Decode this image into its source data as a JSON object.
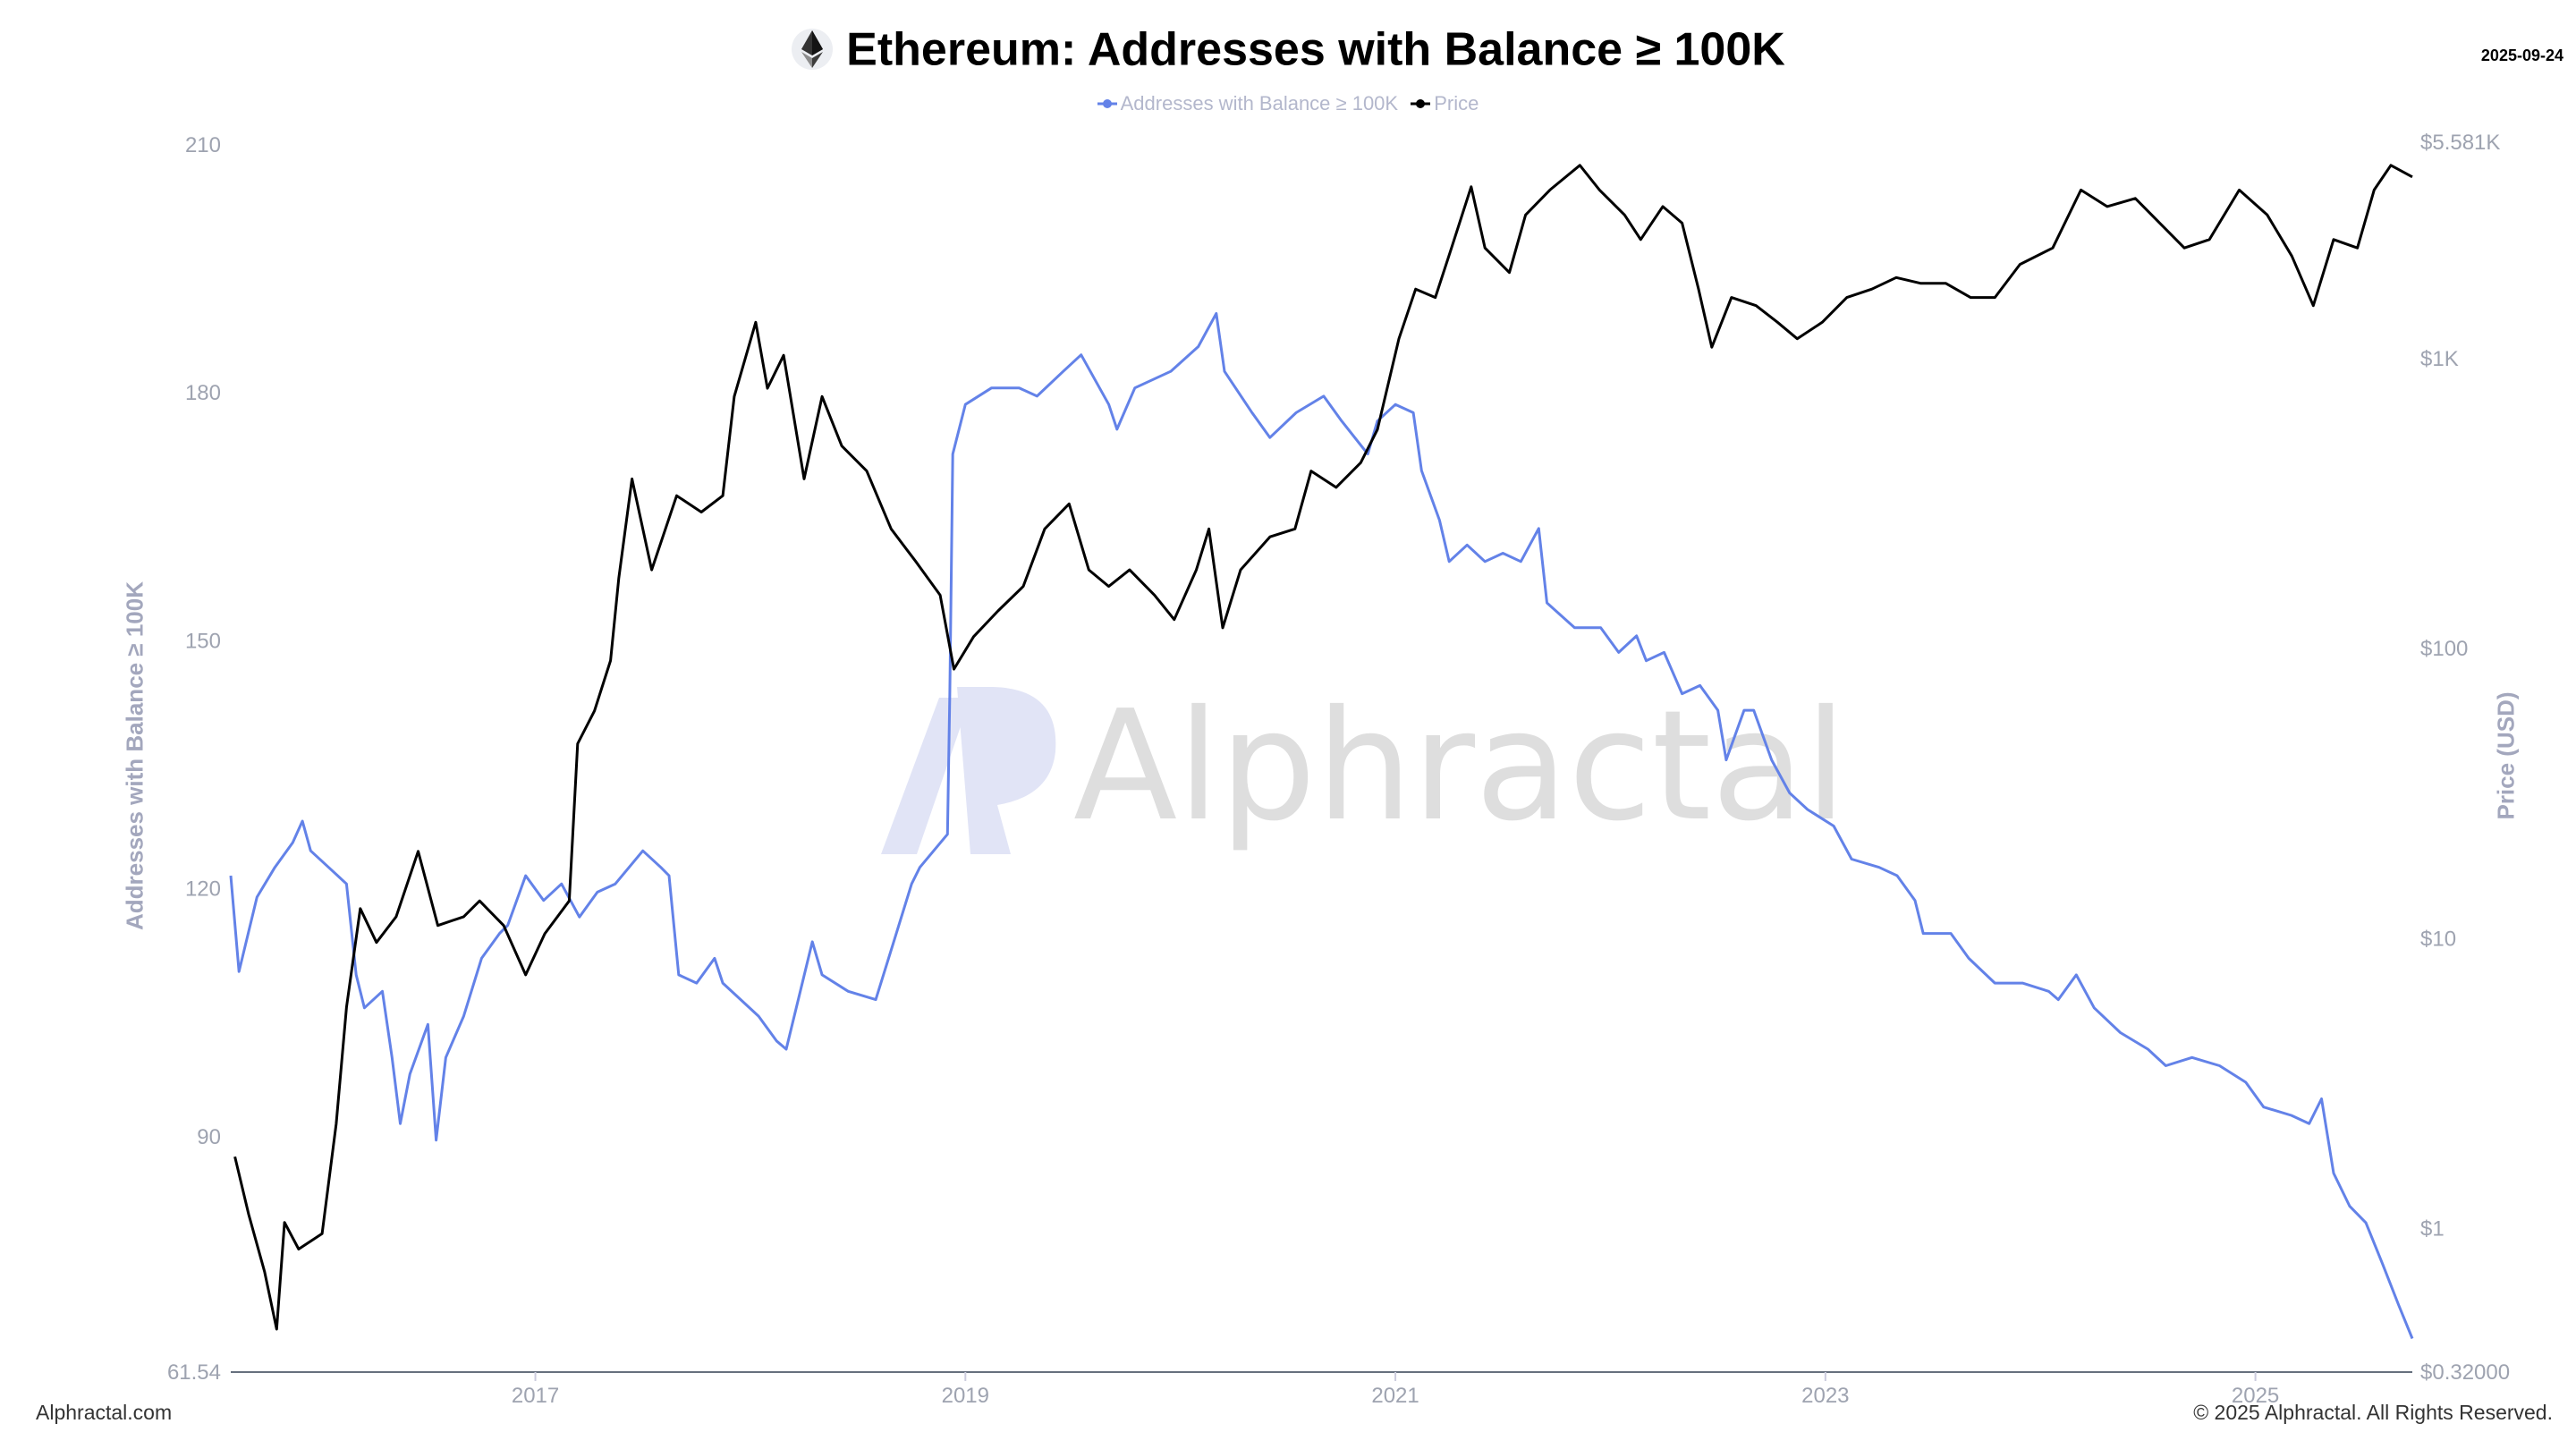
{
  "header": {
    "title": "Ethereum: Addresses with Balance ≥ 100K",
    "date": "2025-09-24",
    "icon": "ethereum-icon"
  },
  "footer": {
    "left": "Alphractal.com",
    "right": "© 2025 Alphractal. All Rights Reserved."
  },
  "watermark": "Alphractal",
  "colors": {
    "addresses": "#6382e8",
    "price": "#000000"
  },
  "chart_data": {
    "type": "line",
    "title": "Ethereum: Addresses with Balance ≥ 100K",
    "legend": [
      "Addresses with Balance ≥ 100K",
      "Price"
    ],
    "legend_position": "top",
    "grid": false,
    "x_axis": {
      "range": [
        "2015-08-01",
        "2025-09-24"
      ],
      "ticks": [
        "2017",
        "2019",
        "2021",
        "2023",
        "2025"
      ]
    },
    "y_left": {
      "label": "Addresses with Balance ≥ 100K",
      "range": [
        61.54,
        210
      ],
      "ticks": [
        {
          "v": 61.54,
          "label": "61.54"
        },
        {
          "v": 90,
          "label": "90"
        },
        {
          "v": 120,
          "label": "120"
        },
        {
          "v": 150,
          "label": "150"
        },
        {
          "v": 180,
          "label": "180"
        },
        {
          "v": 210,
          "label": "210"
        }
      ]
    },
    "y_right": {
      "label": "Price (USD)",
      "scale": "log",
      "range": [
        0.32,
        5581
      ],
      "ticks": [
        {
          "v": 0.32,
          "label": "$0.32000"
        },
        {
          "v": 1,
          "label": "$1"
        },
        {
          "v": 10,
          "label": "$10"
        },
        {
          "v": 100,
          "label": "$100"
        },
        {
          "v": 1000,
          "label": "$1K"
        },
        {
          "v": 5581,
          "label": "$5.581K"
        }
      ]
    },
    "series": [
      {
        "name": "Addresses with Balance ≥ 100K",
        "axis": "left",
        "points": [
          [
            "2015-08-01",
            121.6
          ],
          [
            "2015-08-15",
            110
          ],
          [
            "2015-09-15",
            119
          ],
          [
            "2015-10-15",
            122.6
          ],
          [
            "2015-11-15",
            125.6
          ],
          [
            "2015-12-01",
            128.2
          ],
          [
            "2015-12-15",
            124.6
          ],
          [
            "2016-01-15",
            122.6
          ],
          [
            "2016-02-15",
            120.6
          ],
          [
            "2016-03-01",
            109.6
          ],
          [
            "2016-03-15",
            105.6
          ],
          [
            "2016-04-15",
            107.6
          ],
          [
            "2016-05-01",
            99.6
          ],
          [
            "2016-05-15",
            91.6
          ],
          [
            "2016-06-01",
            97.6
          ],
          [
            "2016-07-01",
            103.6
          ],
          [
            "2016-07-15",
            89.6
          ],
          [
            "2016-08-01",
            99.6
          ],
          [
            "2016-09-01",
            104.6
          ],
          [
            "2016-10-01",
            111.6
          ],
          [
            "2016-11-01",
            114.6
          ],
          [
            "2016-11-15",
            115.6
          ],
          [
            "2016-12-15",
            121.6
          ],
          [
            "2017-01-15",
            118.6
          ],
          [
            "2017-02-15",
            120.6
          ],
          [
            "2017-03-15",
            116.6
          ],
          [
            "2017-04-15",
            119.6
          ],
          [
            "2017-05-15",
            120.6
          ],
          [
            "2017-07-01",
            124.6
          ],
          [
            "2017-08-01",
            122.6
          ],
          [
            "2017-08-15",
            121.6
          ],
          [
            "2017-09-01",
            109.6
          ],
          [
            "2017-10-01",
            108.6
          ],
          [
            "2017-11-01",
            111.6
          ],
          [
            "2017-11-15",
            108.6
          ],
          [
            "2017-12-15",
            106.6
          ],
          [
            "2018-01-15",
            104.6
          ],
          [
            "2018-02-15",
            101.6
          ],
          [
            "2018-03-01",
            100.6
          ],
          [
            "2018-04-15",
            113.6
          ],
          [
            "2018-05-01",
            109.6
          ],
          [
            "2018-06-15",
            107.6
          ],
          [
            "2018-08-01",
            106.6
          ],
          [
            "2018-09-01",
            113.6
          ],
          [
            "2018-10-01",
            120.6
          ],
          [
            "2018-10-15",
            122.6
          ],
          [
            "2018-12-01",
            126.6
          ],
          [
            "2018-12-05",
            143.6
          ],
          [
            "2018-12-10",
            172.6
          ],
          [
            "2019-01-01",
            178.6
          ],
          [
            "2019-02-15",
            180.6
          ],
          [
            "2019-04-01",
            180.6
          ],
          [
            "2019-05-01",
            179.6
          ],
          [
            "2019-06-15",
            182.6
          ],
          [
            "2019-07-15",
            184.6
          ],
          [
            "2019-09-01",
            178.6
          ],
          [
            "2019-09-15",
            175.6
          ],
          [
            "2019-10-15",
            180.6
          ],
          [
            "2019-12-15",
            182.6
          ],
          [
            "2020-02-01",
            185.6
          ],
          [
            "2020-03-01",
            189.6
          ],
          [
            "2020-03-15",
            182.6
          ],
          [
            "2020-05-01",
            177.6
          ],
          [
            "2020-06-01",
            174.6
          ],
          [
            "2020-07-15",
            177.6
          ],
          [
            "2020-09-01",
            179.6
          ],
          [
            "2020-10-01",
            176.6
          ],
          [
            "2020-11-15",
            172.6
          ],
          [
            "2020-12-01",
            176.6
          ],
          [
            "2021-01-01",
            178.6
          ],
          [
            "2021-02-01",
            177.6
          ],
          [
            "2021-02-15",
            170.6
          ],
          [
            "2021-03-15",
            164.6
          ],
          [
            "2021-04-01",
            159.6
          ],
          [
            "2021-05-01",
            161.6
          ],
          [
            "2021-06-01",
            159.6
          ],
          [
            "2021-07-01",
            160.6
          ],
          [
            "2021-08-01",
            159.6
          ],
          [
            "2021-09-01",
            163.6
          ],
          [
            "2021-09-15",
            154.6
          ],
          [
            "2021-11-01",
            151.6
          ],
          [
            "2021-12-15",
            151.6
          ],
          [
            "2022-01-15",
            148.6
          ],
          [
            "2022-02-15",
            150.6
          ],
          [
            "2022-03-01",
            147.6
          ],
          [
            "2022-04-01",
            148.6
          ],
          [
            "2022-05-01",
            143.6
          ],
          [
            "2022-06-01",
            144.6
          ],
          [
            "2022-07-01",
            141.6
          ],
          [
            "2022-07-15",
            135.6
          ],
          [
            "2022-08-15",
            141.6
          ],
          [
            "2022-09-01",
            141.6
          ],
          [
            "2022-10-01",
            135.6
          ],
          [
            "2022-11-01",
            131.6
          ],
          [
            "2022-12-01",
            129.6
          ],
          [
            "2023-01-15",
            127.6
          ],
          [
            "2023-02-15",
            123.6
          ],
          [
            "2023-04-01",
            122.6
          ],
          [
            "2023-05-01",
            121.6
          ],
          [
            "2023-06-01",
            118.6
          ],
          [
            "2023-06-15",
            114.6
          ],
          [
            "2023-08-01",
            114.6
          ],
          [
            "2023-09-01",
            111.6
          ],
          [
            "2023-10-15",
            108.6
          ],
          [
            "2023-12-01",
            108.6
          ],
          [
            "2024-01-15",
            107.6
          ],
          [
            "2024-02-01",
            106.6
          ],
          [
            "2024-03-01",
            109.6
          ],
          [
            "2024-04-01",
            105.6
          ],
          [
            "2024-05-15",
            102.6
          ],
          [
            "2024-07-01",
            100.6
          ],
          [
            "2024-08-01",
            98.6
          ],
          [
            "2024-09-15",
            99.6
          ],
          [
            "2024-11-01",
            98.6
          ],
          [
            "2024-12-15",
            96.6
          ],
          [
            "2025-01-15",
            93.6
          ],
          [
            "2025-03-01",
            92.6
          ],
          [
            "2025-04-01",
            91.6
          ],
          [
            "2025-04-22",
            94.6
          ],
          [
            "2025-05-12",
            85.6
          ],
          [
            "2025-06-09",
            81.6
          ],
          [
            "2025-07-06",
            79.6
          ],
          [
            "2025-08-04",
            74.6
          ],
          [
            "2025-09-01",
            69.6
          ],
          [
            "2025-09-24",
            65.6
          ]
        ]
      },
      {
        "name": "Price",
        "axis": "right",
        "points": [
          [
            "2015-08-08",
            1.77
          ],
          [
            "2015-09-01",
            1.12
          ],
          [
            "2015-09-28",
            0.71
          ],
          [
            "2015-10-18",
            0.45
          ],
          [
            "2015-11-01",
            1.05
          ],
          [
            "2015-11-25",
            0.85
          ],
          [
            "2016-01-04",
            0.96
          ],
          [
            "2016-01-28",
            2.3
          ],
          [
            "2016-02-15",
            5.8
          ],
          [
            "2016-03-08",
            12.7
          ],
          [
            "2016-04-05",
            9.7
          ],
          [
            "2016-05-08",
            11.9
          ],
          [
            "2016-06-15",
            20
          ],
          [
            "2016-07-18",
            11.1
          ],
          [
            "2016-09-01",
            11.9
          ],
          [
            "2016-09-28",
            13.5
          ],
          [
            "2016-11-08",
            11.1
          ],
          [
            "2016-12-15",
            7.5
          ],
          [
            "2017-01-17",
            10.4
          ],
          [
            "2017-02-28",
            13.5
          ],
          [
            "2017-03-12",
            47
          ],
          [
            "2017-04-10",
            61
          ],
          [
            "2017-05-07",
            91
          ],
          [
            "2017-05-21",
            175
          ],
          [
            "2017-06-13",
            385
          ],
          [
            "2017-07-16",
            187
          ],
          [
            "2017-08-28",
            337
          ],
          [
            "2017-10-09",
            296
          ],
          [
            "2017-11-15",
            337
          ],
          [
            "2017-12-04",
            741
          ],
          [
            "2018-01-10",
            1336
          ],
          [
            "2018-01-30",
            791
          ],
          [
            "2018-02-27",
            1028
          ],
          [
            "2018-04-01",
            385
          ],
          [
            "2018-05-01",
            741
          ],
          [
            "2018-06-04",
            500
          ],
          [
            "2018-07-16",
            410
          ],
          [
            "2018-08-27",
            259
          ],
          [
            "2018-10-08",
            200
          ],
          [
            "2018-11-19",
            153
          ],
          [
            "2018-12-12",
            85
          ],
          [
            "2019-01-15",
            110
          ],
          [
            "2019-02-26",
            135
          ],
          [
            "2019-04-08",
            164
          ],
          [
            "2019-05-14",
            259
          ],
          [
            "2019-06-25",
            316
          ],
          [
            "2019-07-28",
            187
          ],
          [
            "2019-09-01",
            164
          ],
          [
            "2019-10-06",
            187
          ],
          [
            "2019-11-18",
            153
          ],
          [
            "2019-12-21",
            126
          ],
          [
            "2020-01-28",
            187
          ],
          [
            "2020-02-19",
            259
          ],
          [
            "2020-03-12",
            118
          ],
          [
            "2020-04-12",
            187
          ],
          [
            "2020-06-01",
            243
          ],
          [
            "2020-07-13",
            259
          ],
          [
            "2020-08-10",
            410
          ],
          [
            "2020-09-22",
            360
          ],
          [
            "2020-11-03",
            438
          ],
          [
            "2020-12-01",
            570
          ],
          [
            "2021-01-07",
            1172
          ],
          [
            "2021-02-05",
            1738
          ],
          [
            "2021-03-08",
            1626
          ],
          [
            "2021-04-05",
            2411
          ],
          [
            "2021-05-08",
            3917
          ],
          [
            "2021-06-01",
            2411
          ],
          [
            "2021-07-12",
            1983
          ],
          [
            "2021-08-09",
            3133
          ],
          [
            "2021-09-20",
            3819
          ],
          [
            "2021-11-10",
            4645
          ],
          [
            "2021-12-13",
            3819
          ],
          [
            "2022-01-25",
            3133
          ],
          [
            "2022-02-22",
            2576
          ],
          [
            "2022-03-29",
            3350
          ],
          [
            "2022-05-01",
            2936
          ],
          [
            "2022-05-29",
            1738
          ],
          [
            "2022-06-21",
            1096
          ],
          [
            "2022-07-24",
            1626
          ],
          [
            "2022-09-05",
            1524
          ],
          [
            "2022-10-11",
            1336
          ],
          [
            "2022-11-14",
            1172
          ],
          [
            "2022-12-26",
            1336
          ],
          [
            "2023-02-07",
            1626
          ],
          [
            "2023-03-19",
            1738
          ],
          [
            "2023-04-30",
            1905
          ],
          [
            "2023-06-11",
            1820
          ],
          [
            "2023-07-23",
            1820
          ],
          [
            "2023-09-04",
            1626
          ],
          [
            "2023-10-15",
            1626
          ],
          [
            "2023-11-27",
            2115
          ],
          [
            "2024-01-22",
            2411
          ],
          [
            "2024-03-09",
            3819
          ],
          [
            "2024-04-23",
            3350
          ],
          [
            "2024-06-10",
            3573
          ],
          [
            "2024-07-21",
            2936
          ],
          [
            "2024-09-02",
            2411
          ],
          [
            "2024-10-14",
            2576
          ],
          [
            "2024-12-04",
            3819
          ],
          [
            "2025-01-21",
            3133
          ],
          [
            "2025-03-02",
            2259
          ],
          [
            "2025-04-08",
            1524
          ],
          [
            "2025-05-12",
            2576
          ],
          [
            "2025-06-22",
            2411
          ],
          [
            "2025-07-20",
            3819
          ],
          [
            "2025-08-18",
            4645
          ],
          [
            "2025-09-24",
            4236
          ]
        ]
      }
    ]
  }
}
